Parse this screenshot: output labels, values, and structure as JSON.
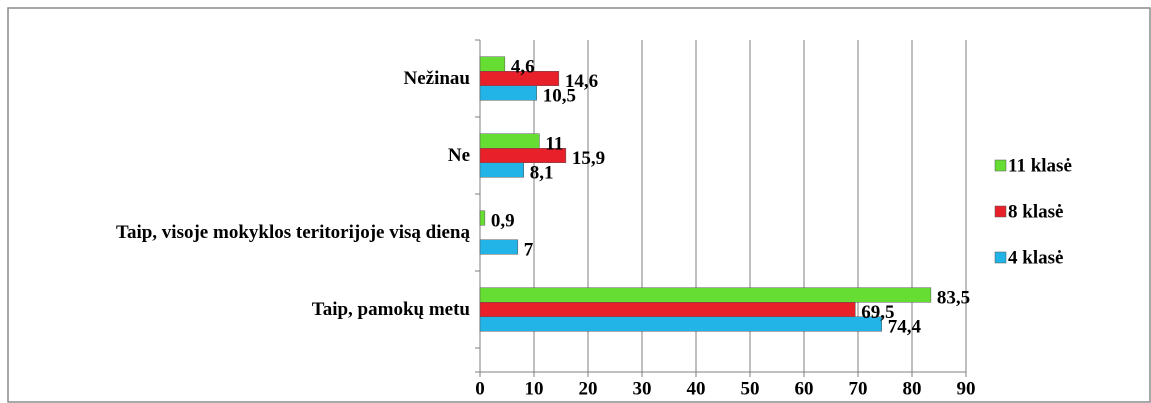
{
  "chart_data": {
    "type": "bar",
    "orientation": "horizontal",
    "categories": [
      "Taip, pamokų metu",
      "Taip, visoje mokyklos teritorijoje visą dieną",
      "Ne",
      "Nežinau"
    ],
    "series": [
      {
        "name": "4 klasė",
        "color": "#22b4e6",
        "values": [
          74.4,
          7,
          8.1,
          10.5
        ],
        "value_labels": [
          "74,4",
          "7",
          "8,1",
          "10,5"
        ]
      },
      {
        "name": "8 klasė",
        "color": "#e8202a",
        "values": [
          69.5,
          null,
          15.9,
          14.6
        ],
        "value_labels": [
          "69,5",
          null,
          "15,9",
          "14,6"
        ]
      },
      {
        "name": "11 klasė",
        "color": "#66dd33",
        "values": [
          83.5,
          0.9,
          11,
          4.6
        ],
        "value_labels": [
          "83,5",
          "0,9",
          "11",
          "4,6"
        ]
      }
    ],
    "xlim": [
      0,
      90
    ],
    "xticks": [
      0,
      10,
      20,
      30,
      40,
      50,
      60,
      70,
      80,
      90
    ],
    "grid": true,
    "legend": "right"
  }
}
